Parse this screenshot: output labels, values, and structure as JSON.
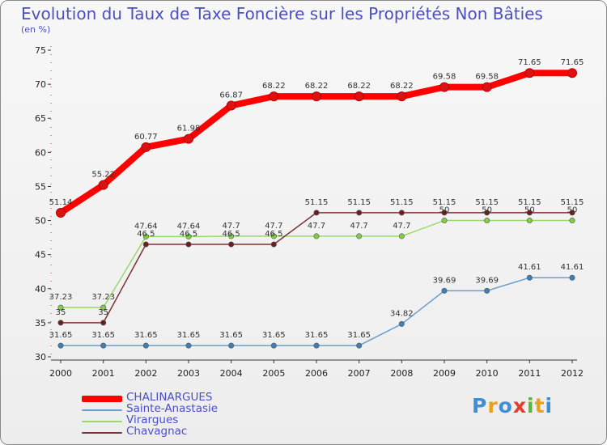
{
  "chart_data": {
    "type": "line",
    "title": "Evolution du Taux de Taxe Foncière sur les Propriétés Non Bâties",
    "unit_label": "(en %)",
    "xlabel": "",
    "ylabel": "",
    "ylim": [
      30,
      75
    ],
    "yticks": [
      30,
      35,
      40,
      45,
      50,
      55,
      60,
      65,
      70,
      75
    ],
    "categories": [
      "2000",
      "2001",
      "2002",
      "2003",
      "2004",
      "2005",
      "2006",
      "2007",
      "2008",
      "2009",
      "2010",
      "2011",
      "2012"
    ],
    "series": [
      {
        "name": "CHALINARGUES",
        "color": "#ff0000",
        "values": [
          51.14,
          55.22,
          60.77,
          61.98,
          66.87,
          68.22,
          68.22,
          68.22,
          68.22,
          69.58,
          69.58,
          71.65,
          71.65
        ],
        "labels": [
          "51.14",
          "55.22",
          "60.77",
          "61.98",
          "66.87",
          "68.22",
          "68.22",
          "68.22",
          "68.22",
          "69.58",
          "69.58",
          "71.65",
          "71.65"
        ]
      },
      {
        "name": "Sainte-Anastasie",
        "color": "#6a9fcd",
        "values": [
          31.65,
          31.65,
          31.65,
          31.65,
          31.65,
          31.65,
          31.65,
          31.65,
          34.82,
          39.69,
          39.69,
          41.61,
          41.61
        ],
        "labels": [
          "31.65",
          "31.65",
          "31.65",
          "31.65",
          "31.65",
          "31.65",
          "31.65",
          "31.65",
          "34.82",
          "39.69",
          "39.69",
          "41.61",
          "41.61"
        ]
      },
      {
        "name": "Virargues",
        "color": "#9ad86a",
        "values": [
          37.23,
          37.23,
          47.64,
          47.64,
          47.7,
          47.7,
          47.7,
          47.7,
          47.7,
          50,
          50,
          50,
          50
        ],
        "labels": [
          "37.23",
          "37.23",
          "47.64",
          "47.64",
          "47.7",
          "47.7",
          "47.7",
          "47.7",
          "47.7",
          "50",
          "50",
          "50",
          "50"
        ]
      },
      {
        "name": "Chavagnac",
        "color": "#7b3333",
        "values": [
          35,
          35,
          46.5,
          46.5,
          46.5,
          46.5,
          51.15,
          51.15,
          51.15,
          51.15,
          51.15,
          51.15,
          51.15
        ],
        "labels": [
          "35",
          "35",
          "46.5",
          "46.5",
          "46.5",
          "46.5",
          "51.15",
          "51.15",
          "51.15",
          "51.15",
          "51.15",
          "51.15",
          "51.15"
        ]
      }
    ],
    "legend_position": "bottom-left"
  },
  "logo": {
    "letters": [
      "P",
      "r",
      "o",
      "x",
      "i",
      "t",
      "i"
    ],
    "colors": [
      "#3a8fd6",
      "#e8a21a",
      "#3a8fd6",
      "#e43b2a",
      "#59b63a",
      "#e8a21a",
      "#3a8fd6"
    ]
  }
}
